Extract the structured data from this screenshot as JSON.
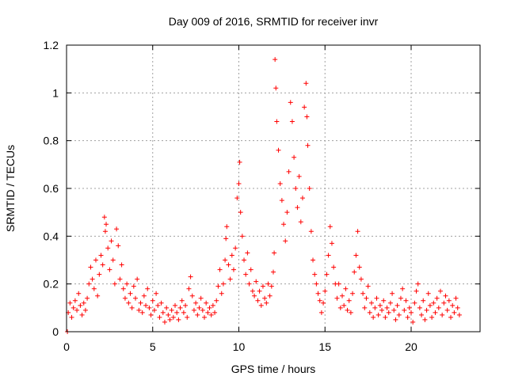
{
  "chart_data": {
    "type": "scatter",
    "title": "Day 009 of 2016, SRMTID for receiver invr",
    "xlabel": "GPS time / hours",
    "ylabel": "SRMTID / TECUs",
    "xlim": [
      0,
      24
    ],
    "ylim": [
      0,
      1.2
    ],
    "x_ticks": [
      0,
      5,
      10,
      15,
      20
    ],
    "y_ticks": [
      0,
      0.2,
      0.4,
      0.6,
      0.8,
      1,
      1.2
    ],
    "x_tick_labels": [
      "0",
      "5",
      "10",
      "15",
      "20"
    ],
    "y_tick_labels": [
      "0",
      "0.2",
      "0.4",
      "0.6",
      "0.8",
      "1",
      "1.2"
    ],
    "grid": true,
    "marker": "plus",
    "color": "#ff0000",
    "series": [
      {
        "name": "SRMTID",
        "points": [
          [
            0.05,
            0.0
          ],
          [
            0.1,
            0.08
          ],
          [
            0.2,
            0.12
          ],
          [
            0.3,
            0.06
          ],
          [
            0.4,
            0.1
          ],
          [
            0.5,
            0.13
          ],
          [
            0.6,
            0.09
          ],
          [
            0.7,
            0.16
          ],
          [
            0.8,
            0.11
          ],
          [
            0.9,
            0.07
          ],
          [
            1.0,
            0.12
          ],
          [
            1.1,
            0.09
          ],
          [
            1.2,
            0.14
          ],
          [
            1.3,
            0.2
          ],
          [
            1.4,
            0.27
          ],
          [
            1.5,
            0.22
          ],
          [
            1.6,
            0.18
          ],
          [
            1.7,
            0.3
          ],
          [
            1.8,
            0.15
          ],
          [
            1.9,
            0.24
          ],
          [
            2.0,
            0.32
          ],
          [
            2.1,
            0.28
          ],
          [
            2.2,
            0.48
          ],
          [
            2.25,
            0.42
          ],
          [
            2.3,
            0.45
          ],
          [
            2.4,
            0.35
          ],
          [
            2.5,
            0.26
          ],
          [
            2.6,
            0.38
          ],
          [
            2.7,
            0.3
          ],
          [
            2.8,
            0.2
          ],
          [
            2.9,
            0.43
          ],
          [
            3.0,
            0.36
          ],
          [
            3.1,
            0.22
          ],
          [
            3.2,
            0.28
          ],
          [
            3.3,
            0.18
          ],
          [
            3.4,
            0.14
          ],
          [
            3.5,
            0.2
          ],
          [
            3.6,
            0.12
          ],
          [
            3.7,
            0.16
          ],
          [
            3.8,
            0.1
          ],
          [
            3.9,
            0.19
          ],
          [
            4.0,
            0.14
          ],
          [
            4.1,
            0.22
          ],
          [
            4.2,
            0.09
          ],
          [
            4.3,
            0.12
          ],
          [
            4.4,
            0.08
          ],
          [
            4.5,
            0.15
          ],
          [
            4.6,
            0.11
          ],
          [
            4.7,
            0.18
          ],
          [
            4.8,
            0.1
          ],
          [
            4.9,
            0.07
          ],
          [
            5.0,
            0.13
          ],
          [
            5.1,
            0.09
          ],
          [
            5.2,
            0.16
          ],
          [
            5.3,
            0.11
          ],
          [
            5.4,
            0.06
          ],
          [
            5.5,
            0.12
          ],
          [
            5.6,
            0.08
          ],
          [
            5.7,
            0.04
          ],
          [
            5.8,
            0.1
          ],
          [
            5.9,
            0.07
          ],
          [
            6.0,
            0.05
          ],
          [
            6.1,
            0.09
          ],
          [
            6.2,
            0.06
          ],
          [
            6.3,
            0.11
          ],
          [
            6.4,
            0.08
          ],
          [
            6.5,
            0.05
          ],
          [
            6.6,
            0.1
          ],
          [
            6.7,
            0.13
          ],
          [
            6.8,
            0.08
          ],
          [
            6.9,
            0.11
          ],
          [
            7.0,
            0.06
          ],
          [
            7.1,
            0.18
          ],
          [
            7.2,
            0.23
          ],
          [
            7.3,
            0.15
          ],
          [
            7.4,
            0.09
          ],
          [
            7.5,
            0.12
          ],
          [
            7.6,
            0.07
          ],
          [
            7.7,
            0.1
          ],
          [
            7.8,
            0.14
          ],
          [
            7.9,
            0.09
          ],
          [
            8.0,
            0.06
          ],
          [
            8.1,
            0.12
          ],
          [
            8.2,
            0.08
          ],
          [
            8.3,
            0.1
          ],
          [
            8.4,
            0.07
          ],
          [
            8.5,
            0.11
          ],
          [
            8.6,
            0.08
          ],
          [
            8.7,
            0.13
          ],
          [
            8.8,
            0.19
          ],
          [
            8.9,
            0.26
          ],
          [
            9.0,
            0.16
          ],
          [
            9.1,
            0.2
          ],
          [
            9.2,
            0.3
          ],
          [
            9.25,
            0.39
          ],
          [
            9.3,
            0.44
          ],
          [
            9.4,
            0.28
          ],
          [
            9.5,
            0.22
          ],
          [
            9.6,
            0.32
          ],
          [
            9.7,
            0.26
          ],
          [
            9.8,
            0.35
          ],
          [
            9.9,
            0.56
          ],
          [
            10.0,
            0.62
          ],
          [
            10.05,
            0.71
          ],
          [
            10.1,
            0.5
          ],
          [
            10.2,
            0.4
          ],
          [
            10.3,
            0.3
          ],
          [
            10.4,
            0.24
          ],
          [
            10.5,
            0.33
          ],
          [
            10.6,
            0.2
          ],
          [
            10.7,
            0.26
          ],
          [
            10.8,
            0.17
          ],
          [
            10.9,
            0.15
          ],
          [
            11.0,
            0.21
          ],
          [
            11.1,
            0.13
          ],
          [
            11.2,
            0.17
          ],
          [
            11.3,
            0.11
          ],
          [
            11.4,
            0.19
          ],
          [
            11.5,
            0.14
          ],
          [
            11.6,
            0.12
          ],
          [
            11.7,
            0.2
          ],
          [
            11.8,
            0.15
          ],
          [
            11.9,
            0.19
          ],
          [
            12.0,
            0.25
          ],
          [
            12.05,
            0.33
          ],
          [
            12.1,
            1.14
          ],
          [
            12.15,
            1.02
          ],
          [
            12.2,
            0.88
          ],
          [
            12.3,
            0.76
          ],
          [
            12.4,
            0.62
          ],
          [
            12.5,
            0.55
          ],
          [
            12.6,
            0.45
          ],
          [
            12.7,
            0.38
          ],
          [
            12.8,
            0.5
          ],
          [
            12.9,
            0.67
          ],
          [
            13.0,
            0.96
          ],
          [
            13.1,
            0.88
          ],
          [
            13.2,
            0.73
          ],
          [
            13.3,
            0.6
          ],
          [
            13.4,
            0.52
          ],
          [
            13.5,
            0.65
          ],
          [
            13.6,
            0.46
          ],
          [
            13.7,
            0.56
          ],
          [
            13.8,
            0.94
          ],
          [
            13.9,
            1.04
          ],
          [
            13.95,
            0.9
          ],
          [
            14.0,
            0.78
          ],
          [
            14.1,
            0.6
          ],
          [
            14.2,
            0.42
          ],
          [
            14.3,
            0.3
          ],
          [
            14.4,
            0.24
          ],
          [
            14.5,
            0.2
          ],
          [
            14.6,
            0.16
          ],
          [
            14.7,
            0.13
          ],
          [
            14.8,
            0.08
          ],
          [
            14.9,
            0.12
          ],
          [
            15.0,
            0.17
          ],
          [
            15.1,
            0.24
          ],
          [
            15.2,
            0.32
          ],
          [
            15.3,
            0.44
          ],
          [
            15.4,
            0.37
          ],
          [
            15.5,
            0.27
          ],
          [
            15.6,
            0.2
          ],
          [
            15.7,
            0.14
          ],
          [
            15.8,
            0.2
          ],
          [
            15.9,
            0.1
          ],
          [
            16.0,
            0.15
          ],
          [
            16.1,
            0.11
          ],
          [
            16.2,
            0.18
          ],
          [
            16.3,
            0.09
          ],
          [
            16.4,
            0.13
          ],
          [
            16.5,
            0.08
          ],
          [
            16.6,
            0.16
          ],
          [
            16.7,
            0.25
          ],
          [
            16.8,
            0.32
          ],
          [
            16.9,
            0.42
          ],
          [
            17.0,
            0.27
          ],
          [
            17.1,
            0.22
          ],
          [
            17.2,
            0.16
          ],
          [
            17.3,
            0.1
          ],
          [
            17.4,
            0.14
          ],
          [
            17.5,
            0.19
          ],
          [
            17.6,
            0.08
          ],
          [
            17.7,
            0.12
          ],
          [
            17.8,
            0.06
          ],
          [
            17.9,
            0.1
          ],
          [
            18.0,
            0.14
          ],
          [
            18.1,
            0.07
          ],
          [
            18.2,
            0.11
          ],
          [
            18.3,
            0.09
          ],
          [
            18.4,
            0.13
          ],
          [
            18.5,
            0.06
          ],
          [
            18.6,
            0.1
          ],
          [
            18.7,
            0.08
          ],
          [
            18.8,
            0.12
          ],
          [
            18.9,
            0.16
          ],
          [
            19.0,
            0.09
          ],
          [
            19.1,
            0.05
          ],
          [
            19.2,
            0.11
          ],
          [
            19.3,
            0.07
          ],
          [
            19.4,
            0.14
          ],
          [
            19.5,
            0.18
          ],
          [
            19.6,
            0.09
          ],
          [
            19.7,
            0.13
          ],
          [
            19.8,
            0.06
          ],
          [
            19.9,
            0.1
          ],
          [
            20.0,
            0.08
          ],
          [
            20.1,
            0.04
          ],
          [
            20.2,
            0.12
          ],
          [
            20.3,
            0.17
          ],
          [
            20.4,
            0.2
          ],
          [
            20.5,
            0.1
          ],
          [
            20.6,
            0.07
          ],
          [
            20.7,
            0.13
          ],
          [
            20.8,
            0.05
          ],
          [
            20.9,
            0.09
          ],
          [
            21.0,
            0.16
          ],
          [
            21.1,
            0.11
          ],
          [
            21.2,
            0.06
          ],
          [
            21.3,
            0.12
          ],
          [
            21.4,
            0.08
          ],
          [
            21.5,
            0.14
          ],
          [
            21.6,
            0.1
          ],
          [
            21.7,
            0.17
          ],
          [
            21.8,
            0.07
          ],
          [
            21.9,
            0.12
          ],
          [
            22.0,
            0.15
          ],
          [
            22.1,
            0.09
          ],
          [
            22.2,
            0.13
          ],
          [
            22.3,
            0.06
          ],
          [
            22.4,
            0.11
          ],
          [
            22.5,
            0.08
          ],
          [
            22.6,
            0.14
          ],
          [
            22.7,
            0.1
          ],
          [
            22.8,
            0.07
          ]
        ]
      }
    ]
  }
}
